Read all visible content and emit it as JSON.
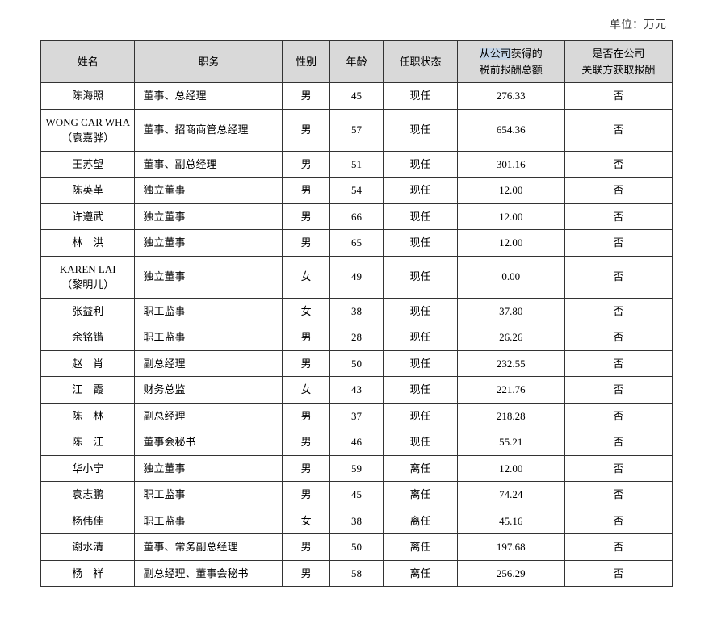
{
  "unit_label": "单位：万元",
  "columns": {
    "name": "姓名",
    "position": "职务",
    "sex": "性别",
    "age": "年龄",
    "status": "任职状态",
    "comp_part1_hl": "从公司",
    "comp_part2": "获得的",
    "comp_line2": "税前报酬总额",
    "related": "是否在公司",
    "related_line2": "关联方获取报酬"
  },
  "rows": [
    {
      "name": "陈海照",
      "position": "董事、总经理",
      "sex": "男",
      "age": "45",
      "status": "现任",
      "comp": "276.33",
      "related": "否"
    },
    {
      "name": "WONG CAR WHA",
      "name2": "（袁嘉骅）",
      "position": "董事、招商商管总经理",
      "sex": "男",
      "age": "57",
      "status": "现任",
      "comp": "654.36",
      "related": "否"
    },
    {
      "name": "王苏望",
      "position": "董事、副总经理",
      "sex": "男",
      "age": "51",
      "status": "现任",
      "comp": "301.16",
      "related": "否"
    },
    {
      "name": "陈英革",
      "position": "独立董事",
      "sex": "男",
      "age": "54",
      "status": "现任",
      "comp": "12.00",
      "related": "否"
    },
    {
      "name": "许遵武",
      "position": "独立董事",
      "sex": "男",
      "age": "66",
      "status": "现任",
      "comp": "12.00",
      "related": "否"
    },
    {
      "name": "林　洪",
      "position": "独立董事",
      "sex": "男",
      "age": "65",
      "status": "现任",
      "comp": "12.00",
      "related": "否"
    },
    {
      "name": "KAREN LAI",
      "name2": "（黎明儿）",
      "position": "独立董事",
      "sex": "女",
      "age": "49",
      "status": "现任",
      "comp": "0.00",
      "related": "否"
    },
    {
      "name": "张益利",
      "position": "职工监事",
      "sex": "女",
      "age": "38",
      "status": "现任",
      "comp": "37.80",
      "related": "否"
    },
    {
      "name": "余铭锴",
      "position": "职工监事",
      "sex": "男",
      "age": "28",
      "status": "现任",
      "comp": "26.26",
      "related": "否"
    },
    {
      "name": "赵　肖",
      "position": "副总经理",
      "sex": "男",
      "age": "50",
      "status": "现任",
      "comp": "232.55",
      "related": "否"
    },
    {
      "name": "江　霞",
      "position": "财务总监",
      "sex": "女",
      "age": "43",
      "status": "现任",
      "comp": "221.76",
      "related": "否"
    },
    {
      "name": "陈　林",
      "position": "副总经理",
      "sex": "男",
      "age": "37",
      "status": "现任",
      "comp": "218.28",
      "related": "否"
    },
    {
      "name": "陈　江",
      "position": "董事会秘书",
      "sex": "男",
      "age": "46",
      "status": "现任",
      "comp": "55.21",
      "related": "否"
    },
    {
      "name": "华小宁",
      "position": "独立董事",
      "sex": "男",
      "age": "59",
      "status": "离任",
      "comp": "12.00",
      "related": "否"
    },
    {
      "name": "袁志鹏",
      "position": "职工监事",
      "sex": "男",
      "age": "45",
      "status": "离任",
      "comp": "74.24",
      "related": "否"
    },
    {
      "name": "杨伟佳",
      "position": "职工监事",
      "sex": "女",
      "age": "38",
      "status": "离任",
      "comp": "45.16",
      "related": "否"
    },
    {
      "name": "谢水清",
      "position": "董事、常务副总经理",
      "sex": "男",
      "age": "50",
      "status": "离任",
      "comp": "197.68",
      "related": "否"
    },
    {
      "name": "杨　祥",
      "position": "副总经理、董事会秘书",
      "sex": "男",
      "age": "58",
      "status": "离任",
      "comp": "256.29",
      "related": "否"
    }
  ]
}
